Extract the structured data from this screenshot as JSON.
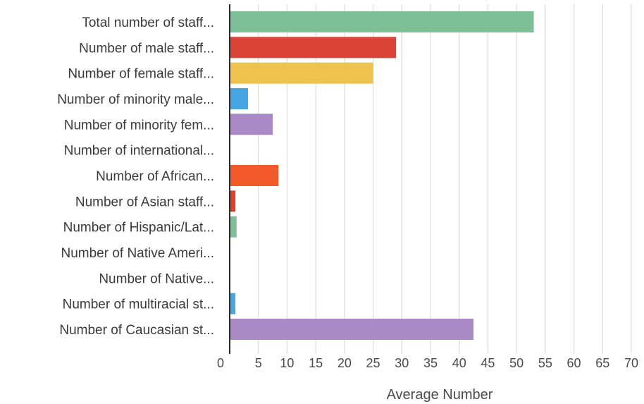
{
  "chart_data": {
    "type": "bar",
    "orientation": "horizontal",
    "categories": [
      "Total number of staff...",
      "Number of male staff...",
      "Number of female staff...",
      "Number of minority male...",
      "Number of minority fem...",
      "Number of international...",
      "Number of African...",
      "Number of Asian staff...",
      "Number of Hispanic/Lat...",
      "Number of Native Ameri...",
      "Number of Native...",
      "Number of multiracial st...",
      "Number of Caucasian st..."
    ],
    "values": [
      53,
      29,
      25,
      3.2,
      7.5,
      0,
      8.5,
      1.0,
      1.2,
      0,
      0,
      1.0,
      42.5
    ],
    "colors": [
      "#7dbf97",
      "#d94437",
      "#edc24f",
      "#45a6e1",
      "#a98ac6",
      "#cccccc",
      "#f2592b",
      "#e0402a",
      "#7dbf97",
      "#cccccc",
      "#cccccc",
      "#45a6e1",
      "#a98ac6"
    ],
    "xlabel": "Average Number",
    "ylabel": "",
    "title": "",
    "xlim": [
      0,
      70
    ],
    "xticks": [
      0,
      5,
      10,
      15,
      20,
      25,
      30,
      35,
      40,
      45,
      50,
      55,
      60,
      65,
      70
    ],
    "grid": true
  }
}
